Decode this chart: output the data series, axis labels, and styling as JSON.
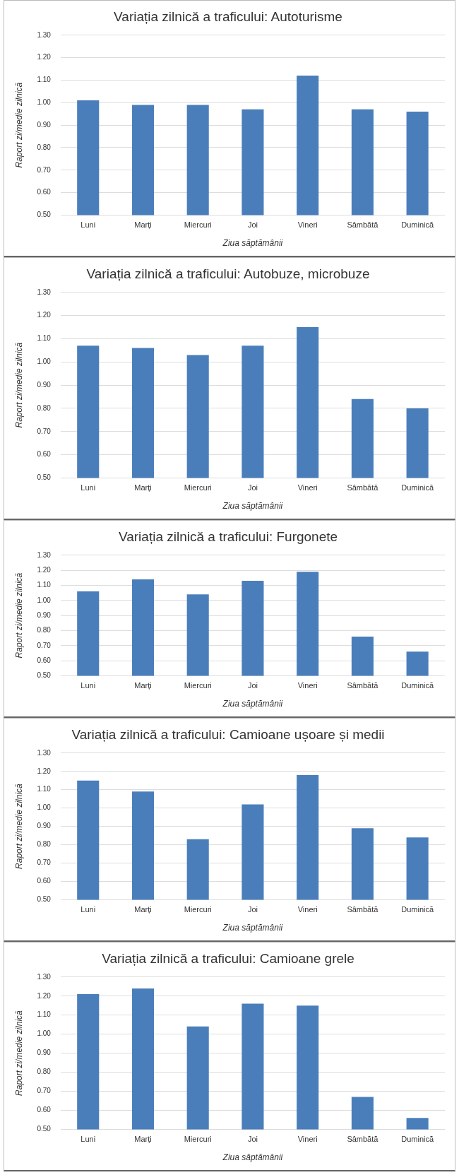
{
  "chart_data": [
    {
      "type": "bar",
      "title": "Variația zilnică a traficului: Autoturisme",
      "xlabel": "Ziua săptămânii",
      "ylabel": "Raport zi/medie zilnică",
      "categories": [
        "Luni",
        "Marți",
        "Miercuri",
        "Joi",
        "Vineri",
        "Sâmbătă",
        "Duminică"
      ],
      "values": [
        1.01,
        0.99,
        0.99,
        0.97,
        1.12,
        0.97,
        0.96
      ],
      "color": "#4a7ebb",
      "ylim": [
        0.5,
        1.3
      ],
      "yticks": [
        {
          "value": 0.5,
          "label": "0.50"
        },
        {
          "value": 0.6,
          "label": "0.60"
        },
        {
          "value": 0.7,
          "label": "0.70"
        },
        {
          "value": 0.8,
          "label": "0.80"
        },
        {
          "value": 0.9,
          "label": "0.90"
        },
        {
          "value": 1.0,
          "label": "1.00"
        },
        {
          "value": 1.1,
          "label": "1.10"
        },
        {
          "value": 1.2,
          "label": "1.20"
        },
        {
          "value": 1.3,
          "label": "1.30"
        }
      ],
      "grid": "y"
    },
    {
      "type": "bar",
      "title": "Variația zilnică a traficului: Autobuze, microbuze",
      "xlabel": "Ziua săptămânii",
      "ylabel": "Raport zi/medie zilnică",
      "categories": [
        "Luni",
        "Marți",
        "Miercuri",
        "Joi",
        "Vineri",
        "Sâmbătă",
        "Duminică"
      ],
      "values": [
        1.07,
        1.06,
        1.03,
        1.07,
        1.15,
        0.84,
        0.8
      ],
      "color": "#4a7ebb",
      "ylim": [
        0.5,
        1.3
      ],
      "yticks": [
        {
          "value": 0.5,
          "label": "0.50"
        },
        {
          "value": 0.6,
          "label": "0.60"
        },
        {
          "value": 0.7,
          "label": "0.70"
        },
        {
          "value": 0.8,
          "label": "0.80"
        },
        {
          "value": 0.9,
          "label": "0.90"
        },
        {
          "value": 1.0,
          "label": "1.00"
        },
        {
          "value": 1.1,
          "label": "1.10"
        },
        {
          "value": 1.2,
          "label": "1.20"
        },
        {
          "value": 1.3,
          "label": "1.30"
        }
      ],
      "grid": "y"
    },
    {
      "type": "bar",
      "title": "Variația zilnică a traficului: Furgonete",
      "xlabel": "Ziua săptămânii",
      "ylabel": "Raport zi/medie zilnică",
      "categories": [
        "Luni",
        "Marți",
        "Miercuri",
        "Joi",
        "Vineri",
        "Sâmbătă",
        "Duminică"
      ],
      "values": [
        1.06,
        1.14,
        1.04,
        1.13,
        1.19,
        0.76,
        0.66
      ],
      "color": "#4a7ebb",
      "ylim": [
        0.5,
        1.3
      ],
      "yticks": [
        {
          "value": 0.5,
          "label": "0.50"
        },
        {
          "value": 0.6,
          "label": "0.60"
        },
        {
          "value": 0.7,
          "label": "0.70"
        },
        {
          "value": 0.8,
          "label": "0.80"
        },
        {
          "value": 0.9,
          "label": "0.90"
        },
        {
          "value": 1.0,
          "label": "1.00"
        },
        {
          "value": 1.1,
          "label": "1.10"
        },
        {
          "value": 1.2,
          "label": "1.20"
        },
        {
          "value": 1.3,
          "label": "1.30"
        }
      ],
      "grid": "y"
    },
    {
      "type": "bar",
      "title": "Variația zilnică a traficului: Camioane ușoare și medii",
      "xlabel": "Ziua săptămânii",
      "ylabel": "Raport zi/medie zilnică",
      "categories": [
        "Luni",
        "Marți",
        "Miercuri",
        "Joi",
        "Vineri",
        "Sâmbătă",
        "Duminică"
      ],
      "values": [
        1.15,
        1.09,
        0.83,
        1.02,
        1.18,
        0.89,
        0.84
      ],
      "color": "#4a7ebb",
      "ylim": [
        0.5,
        1.3
      ],
      "yticks": [
        {
          "value": 0.5,
          "label": "0.50"
        },
        {
          "value": 0.6,
          "label": "0.60"
        },
        {
          "value": 0.7,
          "label": "0.70"
        },
        {
          "value": 0.8,
          "label": "0.80"
        },
        {
          "value": 0.9,
          "label": "0.90"
        },
        {
          "value": 1.0,
          "label": "1.00"
        },
        {
          "value": 1.1,
          "label": "1.10"
        },
        {
          "value": 1.2,
          "label": "1.20"
        },
        {
          "value": 1.3,
          "label": "1.30"
        }
      ],
      "grid": "y"
    },
    {
      "type": "bar",
      "title": "Variația zilnică a traficului: Camioane grele",
      "xlabel": "Ziua săptămânii",
      "ylabel": "Raport zi/medie zilnică",
      "categories": [
        "Luni",
        "Marți",
        "Miercuri",
        "Joi",
        "Vineri",
        "Sâmbătă",
        "Duminică"
      ],
      "values": [
        1.21,
        1.24,
        1.04,
        1.16,
        1.15,
        0.67,
        0.56
      ],
      "color": "#4a7ebb",
      "ylim": [
        0.5,
        1.3
      ],
      "yticks": [
        {
          "value": 0.5,
          "label": "0.50"
        },
        {
          "value": 0.6,
          "label": "0.60"
        },
        {
          "value": 0.7,
          "label": "0.70"
        },
        {
          "value": 0.8,
          "label": "0.80"
        },
        {
          "value": 0.9,
          "label": "0.90"
        },
        {
          "value": 1.0,
          "label": "1.00"
        },
        {
          "value": 1.1,
          "label": "1.10"
        },
        {
          "value": 1.2,
          "label": "1.20"
        },
        {
          "value": 1.3,
          "label": "1.30"
        }
      ],
      "grid": "y"
    }
  ]
}
